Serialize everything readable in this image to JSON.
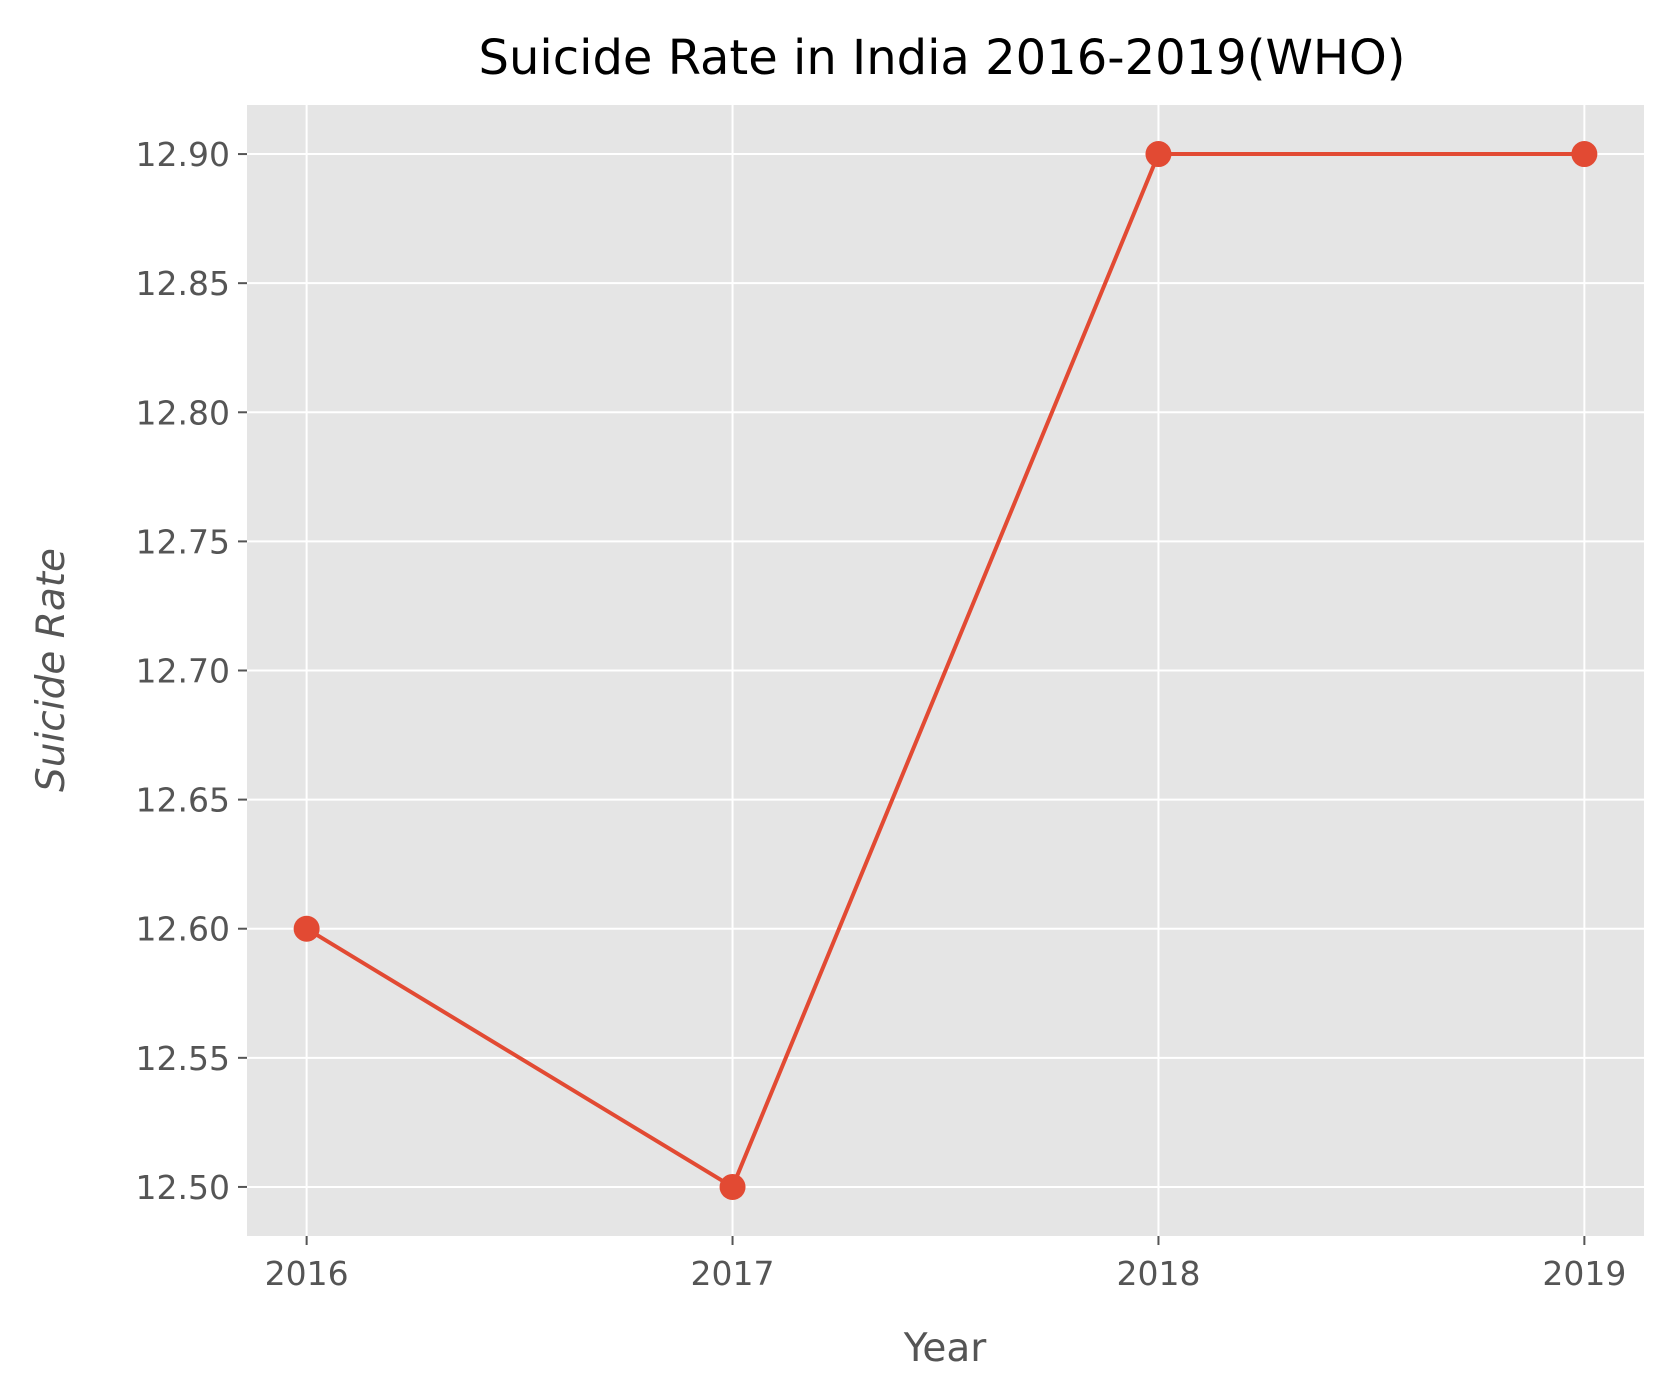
{
  "chart_data": {
    "type": "line",
    "title": "Suicide Rate in India 2016-2019(WHO)",
    "xlabel": "Year",
    "ylabel": "Suicide Rate",
    "x": [
      2016,
      2017,
      2018,
      2019
    ],
    "x_tick_labels": [
      "2016",
      "2017",
      "2018",
      "2019"
    ],
    "series": [
      {
        "values": [
          12.6,
          12.5,
          12.9,
          12.9
        ],
        "color": "#E24A33"
      }
    ],
    "y_ticks": [
      12.5,
      12.55,
      12.6,
      12.65,
      12.7,
      12.75,
      12.8,
      12.85,
      12.9
    ],
    "y_tick_labels": [
      "12.50",
      "12.55",
      "12.60",
      "12.65",
      "12.70",
      "12.75",
      "12.80",
      "12.85",
      "12.90"
    ],
    "xlim": [
      2015.86,
      2019.14
    ],
    "ylim": [
      12.481,
      12.919
    ],
    "grid": true,
    "background_color": "#E5E5E5",
    "grid_color": "#FFFFFF",
    "legend": "none",
    "marker": "circle"
  }
}
